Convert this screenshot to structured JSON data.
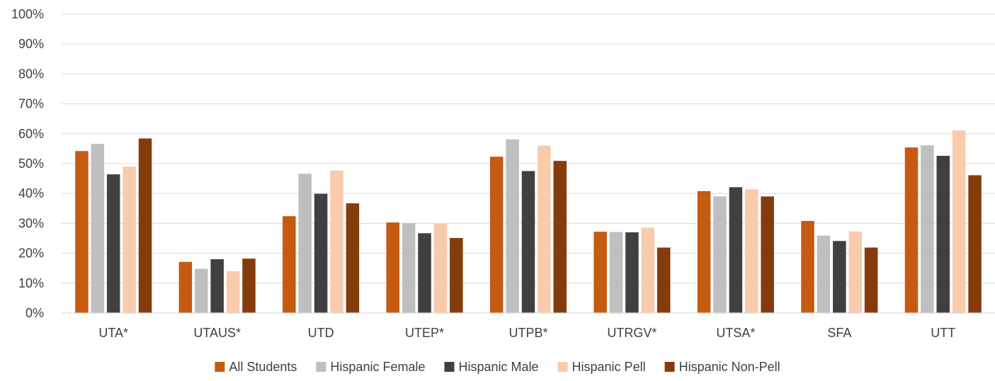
{
  "chart_data": {
    "type": "bar",
    "title": "",
    "xlabel": "",
    "ylabel": "",
    "ylim": [
      0,
      100
    ],
    "y_ticks": [
      "0%",
      "10%",
      "20%",
      "30%",
      "40%",
      "50%",
      "60%",
      "70%",
      "80%",
      "90%",
      "100%"
    ],
    "grid": true,
    "legend_position": "bottom",
    "categories": [
      "UTA*",
      "UTAUS*",
      "UTD",
      "UTEP*",
      "UTPB*",
      "UTRGV*",
      "UTSA*",
      "SFA",
      "UTT"
    ],
    "series": [
      {
        "name": "All Students",
        "color": "#C55A11",
        "values": [
          54.2,
          17.1,
          32.4,
          30.3,
          52.3,
          27.2,
          40.8,
          30.8,
          55.4
        ]
      },
      {
        "name": "Hispanic Female",
        "color": "#BFBFBF",
        "values": [
          56.6,
          14.8,
          46.6,
          30.1,
          58.1,
          27.1,
          39.0,
          25.9,
          56.1
        ]
      },
      {
        "name": "Hispanic Male",
        "color": "#404040",
        "values": [
          46.4,
          18.0,
          39.9,
          26.7,
          47.5,
          27.0,
          42.1,
          24.1,
          52.6
        ]
      },
      {
        "name": "Hispanic Pell",
        "color": "#F8CBAD",
        "values": [
          49.0,
          14.0,
          47.7,
          29.9,
          56.0,
          28.6,
          41.4,
          27.3,
          61.1
        ]
      },
      {
        "name": "Hispanic Non-Pell",
        "color": "#843C0C",
        "values": [
          58.4,
          18.2,
          36.7,
          25.1,
          50.9,
          21.9,
          39.0,
          21.9,
          46.1
        ]
      }
    ]
  }
}
